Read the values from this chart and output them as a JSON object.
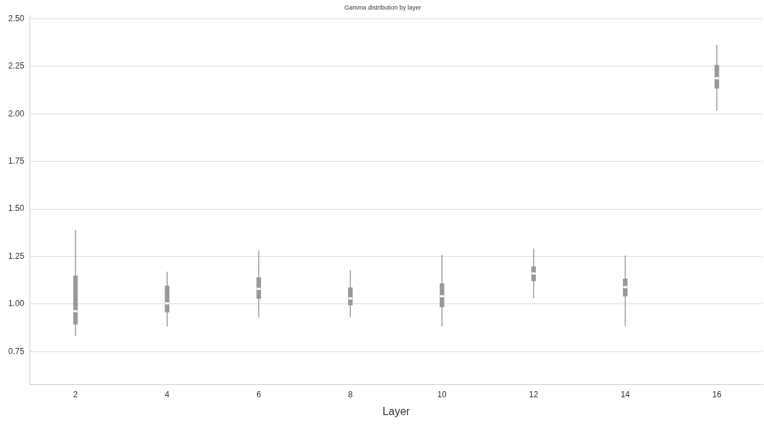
{
  "chart_data": {
    "type": "box",
    "title": "Gamma distribution by layer",
    "xlabel": "Layer",
    "categories": [
      "2",
      "4",
      "6",
      "8",
      "10",
      "12",
      "14",
      "16"
    ],
    "color": "#999999",
    "boxes": [
      {
        "low": 0.833,
        "q1": 0.894,
        "median": 0.963,
        "q3": 1.149,
        "high": 1.388
      },
      {
        "low": 0.882,
        "q1": 0.958,
        "median": 1.004,
        "q3": 1.096,
        "high": 1.17
      },
      {
        "low": 0.93,
        "q1": 1.03,
        "median": 1.08,
        "q3": 1.139,
        "high": 1.282
      },
      {
        "low": 0.93,
        "q1": 0.995,
        "median": 1.03,
        "q3": 1.086,
        "high": 1.177
      },
      {
        "low": 0.883,
        "q1": 0.985,
        "median": 1.041,
        "q3": 1.108,
        "high": 1.258
      },
      {
        "low": 1.03,
        "q1": 1.122,
        "median": 1.161,
        "q3": 1.197,
        "high": 1.292
      },
      {
        "low": 0.885,
        "q1": 1.042,
        "median": 1.089,
        "q3": 1.133,
        "high": 1.255
      },
      {
        "low": 2.016,
        "q1": 2.135,
        "median": 2.188,
        "q3": 2.257,
        "high": 2.363
      }
    ],
    "ylim": [
      0.577,
      2.517
    ],
    "yticks": [
      0.75,
      {
        "value": 1,
        "label": "1.00"
      },
      1.25,
      {
        "value": 1.5,
        "label": "1.50"
      },
      1.75,
      {
        "value": 2,
        "label": "2.00"
      },
      2.25,
      {
        "value": 2.5,
        "label": "2.50"
      }
    ],
    "grid": "y",
    "legend": false
  }
}
